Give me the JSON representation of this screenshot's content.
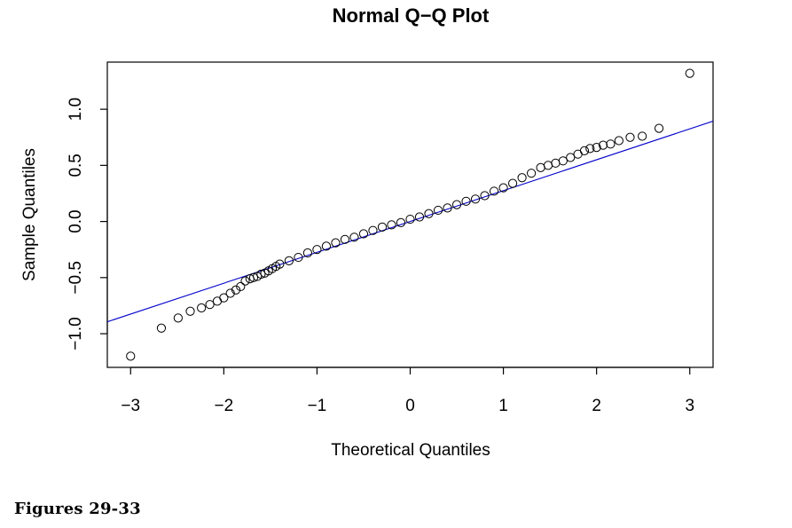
{
  "caption": "Figures 29-33",
  "chart_data": {
    "type": "scatter",
    "title": "Normal Q−Q Plot",
    "xlabel": "Theoretical Quantiles",
    "ylabel": "Sample Quantiles",
    "xlim": [
      -3.25,
      3.25
    ],
    "ylim": [
      -1.3,
      1.42
    ],
    "xticks": [
      -3,
      -2,
      -1,
      0,
      1,
      2,
      3
    ],
    "xtick_labels": [
      "−3",
      "−2",
      "−1",
      "0",
      "1",
      "2",
      "3"
    ],
    "yticks": [
      -1.0,
      -0.5,
      0.0,
      0.5,
      1.0
    ],
    "ytick_labels": [
      "−1.0",
      "−0.5",
      "0.0",
      "0.5",
      "1.0"
    ],
    "grid": false,
    "line_color": "#0000cc",
    "point_color": "#000000",
    "reference_line": {
      "slope": 0.275,
      "intercept": 0.0
    },
    "points": {
      "x": [
        -3.0,
        -2.67,
        -2.49,
        -2.36,
        -2.24,
        -2.15,
        -2.07,
        -2.0,
        -1.93,
        -1.87,
        -1.82,
        -1.77,
        -1.72,
        -1.68,
        -1.64,
        -1.6,
        -1.56,
        -1.52,
        -1.48,
        -1.44,
        -1.4,
        -1.3,
        -1.2,
        -1.1,
        -1.0,
        -0.9,
        -0.8,
        -0.7,
        -0.6,
        -0.5,
        -0.4,
        -0.3,
        -0.2,
        -0.1,
        0.0,
        0.1,
        0.2,
        0.3,
        0.4,
        0.5,
        0.6,
        0.7,
        0.8,
        0.9,
        1.0,
        1.1,
        1.2,
        1.3,
        1.4,
        1.48,
        1.56,
        1.64,
        1.72,
        1.8,
        1.87,
        1.93,
        2.0,
        2.07,
        2.15,
        2.24,
        2.36,
        2.49,
        2.67,
        3.0
      ],
      "y": [
        -1.2,
        -0.95,
        -0.86,
        -0.8,
        -0.77,
        -0.74,
        -0.71,
        -0.68,
        -0.64,
        -0.61,
        -0.58,
        -0.53,
        -0.51,
        -0.5,
        -0.49,
        -0.47,
        -0.46,
        -0.44,
        -0.42,
        -0.4,
        -0.38,
        -0.35,
        -0.32,
        -0.28,
        -0.25,
        -0.22,
        -0.19,
        -0.16,
        -0.14,
        -0.11,
        -0.08,
        -0.05,
        -0.03,
        -0.01,
        0.02,
        0.04,
        0.07,
        0.1,
        0.12,
        0.15,
        0.18,
        0.2,
        0.23,
        0.27,
        0.3,
        0.34,
        0.39,
        0.43,
        0.48,
        0.5,
        0.52,
        0.54,
        0.57,
        0.6,
        0.63,
        0.65,
        0.66,
        0.68,
        0.69,
        0.72,
        0.75,
        0.76,
        0.83,
        1.32
      ]
    }
  }
}
